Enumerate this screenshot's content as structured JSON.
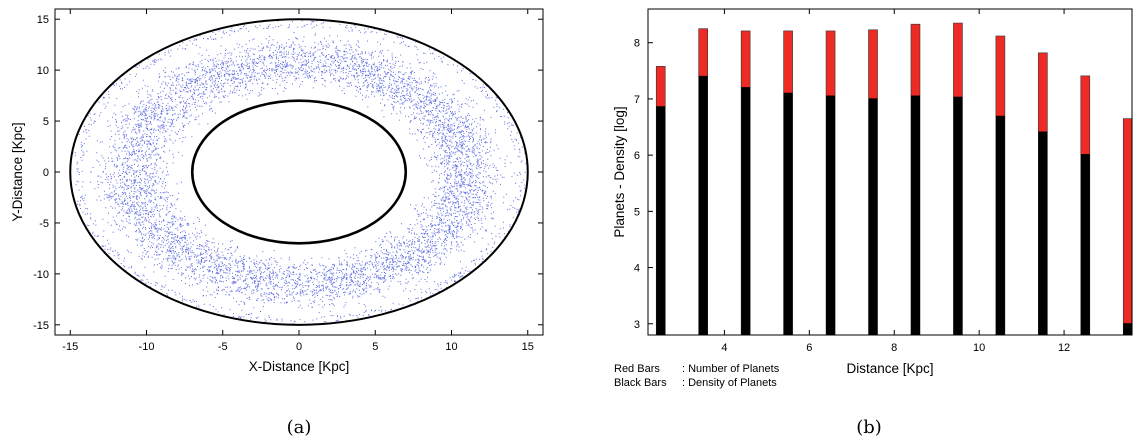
{
  "chart_data": [
    {
      "id": "a",
      "type": "scatter",
      "caption": "(a)",
      "xlabel": "X-Distance [Kpc]",
      "ylabel": "Y-Distance [Kpc]",
      "xlim": [
        -16,
        16
      ],
      "ylim": [
        -16,
        16
      ],
      "xticks": [
        -15,
        -10,
        -5,
        0,
        5,
        10,
        15
      ],
      "yticks": [
        -15,
        -10,
        -5,
        0,
        5,
        10,
        15
      ],
      "grid": false,
      "point_color": "#2b3fd6",
      "ring_color": "#000000",
      "rings": [
        {
          "name": "inner",
          "radius": 7
        },
        {
          "name": "outer",
          "radius": 15
        }
      ],
      "distribution": {
        "r_min": 7.5,
        "r_max": 14.5,
        "density_peak_r": 10
      }
    },
    {
      "id": "b",
      "type": "bar",
      "caption": "(b)",
      "xlabel": "Distance [Kpc]",
      "ylabel": "Planets - Density [log]",
      "xlim": [
        2.2,
        13.6
      ],
      "ylim": [
        2.8,
        8.6
      ],
      "xticks": [
        4,
        6,
        8,
        10,
        12
      ],
      "yticks": [
        3,
        4,
        5,
        6,
        7,
        8
      ],
      "grid": false,
      "x": [
        2.5,
        3.5,
        4.5,
        5.5,
        6.5,
        7.5,
        8.5,
        9.5,
        10.5,
        11.5,
        12.5,
        13.5
      ],
      "series": [
        {
          "name": "Number of Planets",
          "color": "#ee2a24",
          "values": [
            7.58,
            8.25,
            8.21,
            8.21,
            8.21,
            8.23,
            8.33,
            8.35,
            8.12,
            7.82,
            7.41,
            6.65
          ]
        },
        {
          "name": "Density of Planets",
          "color": "#000000",
          "values": [
            6.87,
            7.41,
            7.21,
            7.11,
            7.06,
            7.01,
            7.06,
            7.04,
            6.7,
            6.42,
            6.02,
            3.01
          ]
        }
      ],
      "notes": [
        {
          "key": "Red Bars",
          "text": ": Number of Planets"
        },
        {
          "key": "Black Bars",
          "text": ": Density of Planets"
        }
      ]
    }
  ]
}
